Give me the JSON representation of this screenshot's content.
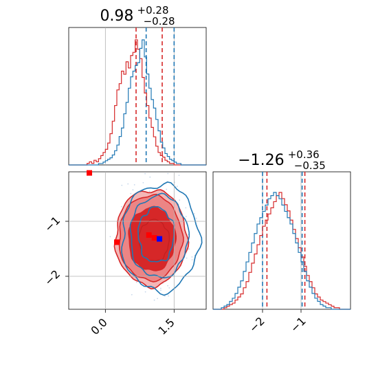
{
  "chart_data": {
    "type": "corner",
    "colors": {
      "red": "#d62728",
      "blue": "#1f77b4",
      "grid": "#b0b0b0"
    },
    "x_limits": [
      -0.8,
      2.2
    ],
    "y_limits": [
      -2.6,
      -0.1
    ],
    "x_ticks": [
      0.0,
      1.5
    ],
    "y_ticks": [
      -1,
      -2
    ],
    "x_tick_labels": [
      "0.0",
      "1.5"
    ],
    "y_tick_labels": [
      "−1",
      "−2"
    ],
    "x2_ticks": [
      -1.7,
      -1.0
    ],
    "x2_tick_labels": [
      "−2",
      "−1"
    ],
    "title_top": {
      "value": "0.98",
      "plus": "+0.28",
      "minus": "−0.28"
    },
    "title_right": {
      "value": "−1.26",
      "plus": "+0.36",
      "minus": "−0.35"
    },
    "param1_quantiles": {
      "red": [
        0.67,
        1.24
      ],
      "blue": [
        0.89,
        1.5
      ]
    },
    "param2_quantiles": {
      "red": [
        -1.62,
        -0.93
      ],
      "blue": [
        -1.7,
        -0.98
      ]
    },
    "markers": [
      {
        "x": -0.35,
        "y": -0.12,
        "color": "red"
      },
      {
        "x": 0.25,
        "y": -1.38,
        "color": "red"
      },
      {
        "x": 0.95,
        "y": -1.25,
        "color": "red"
      },
      {
        "x": 1.07,
        "y": -1.3,
        "color": "red"
      },
      {
        "x": 1.18,
        "y": -1.32,
        "color": "blue"
      }
    ],
    "hist1_red": [
      0,
      0,
      0,
      0,
      0,
      0,
      0,
      0,
      1,
      2,
      1,
      3,
      2,
      4,
      6,
      8,
      10,
      14,
      20,
      28,
      38,
      48,
      52,
      60,
      58,
      66,
      62,
      70,
      72,
      80,
      74,
      68,
      56,
      46,
      38,
      30,
      24,
      18,
      12,
      8,
      6,
      5,
      3,
      2,
      1,
      1,
      0,
      0,
      0,
      0,
      0,
      0,
      0,
      0,
      0,
      0,
      0,
      0,
      0,
      0
    ],
    "hist1_blue": [
      0,
      0,
      0,
      0,
      0,
      0,
      0,
      0,
      0,
      0,
      0,
      0,
      0,
      1,
      1,
      2,
      3,
      4,
      5,
      7,
      10,
      14,
      20,
      26,
      36,
      44,
      54,
      62,
      66,
      70,
      72,
      82,
      88,
      76,
      64,
      54,
      46,
      40,
      32,
      24,
      16,
      12,
      8,
      6,
      4,
      3,
      2,
      1,
      1,
      0,
      0,
      0,
      0,
      0,
      0,
      0,
      0,
      0,
      0,
      0
    ],
    "hist2_red": [
      0,
      0,
      0,
      0,
      1,
      2,
      3,
      4,
      6,
      8,
      10,
      14,
      18,
      24,
      30,
      36,
      42,
      48,
      54,
      58,
      62,
      66,
      70,
      74,
      76,
      72,
      68,
      64,
      58,
      52,
      46,
      40,
      34,
      28,
      22,
      18,
      14,
      10,
      8,
      6,
      5,
      4,
      3,
      2,
      1,
      1,
      0,
      0,
      0,
      0
    ],
    "hist2_blue": [
      0,
      0,
      0,
      1,
      2,
      3,
      5,
      7,
      10,
      14,
      18,
      24,
      30,
      36,
      42,
      48,
      54,
      58,
      62,
      66,
      70,
      72,
      74,
      72,
      70,
      66,
      62,
      58,
      54,
      48,
      42,
      36,
      30,
      24,
      18,
      14,
      10,
      7,
      5,
      3,
      2,
      1,
      1,
      0,
      0,
      0,
      0,
      0,
      0,
      0
    ]
  }
}
